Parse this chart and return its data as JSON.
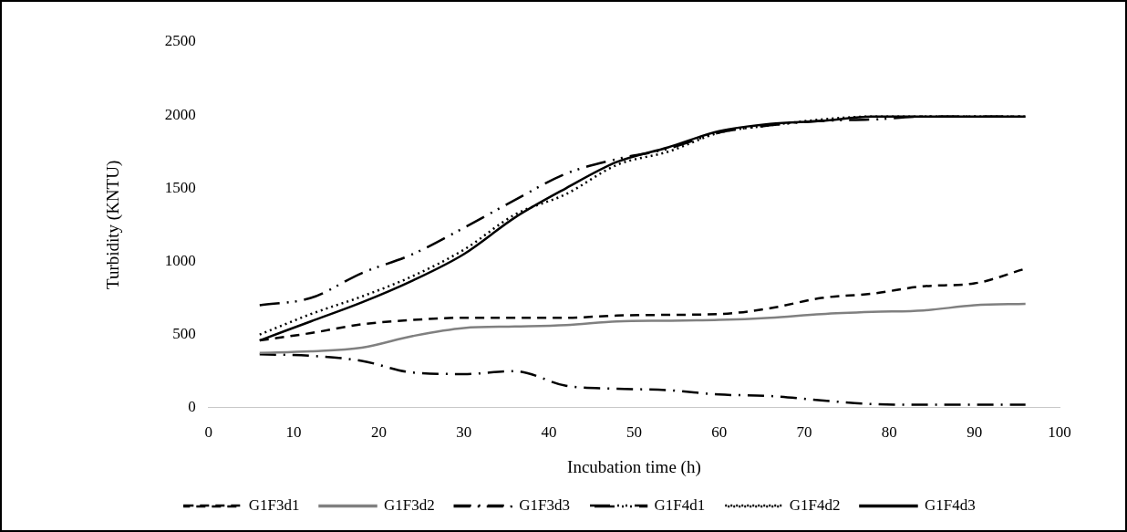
{
  "chart_data": {
    "type": "line",
    "xlabel": "Incubation time (h)",
    "ylabel": "Turbidity (KNTU)",
    "x": [
      6,
      12,
      18,
      24,
      30,
      36,
      42,
      48,
      54,
      60,
      66,
      72,
      78,
      84,
      90,
      96
    ],
    "xlim": [
      0,
      100
    ],
    "xticks": [
      0,
      10,
      20,
      30,
      40,
      50,
      60,
      70,
      80,
      90,
      100
    ],
    "ylim": [
      0,
      2500
    ],
    "yticks": [
      0,
      500,
      1000,
      1500,
      2000,
      2500
    ],
    "grid": false,
    "legend": "bottom",
    "marker": "none",
    "series": [
      {
        "name": "G1F3d1",
        "color": "#000000",
        "line_style": "dashed",
        "values": [
          460,
          510,
          570,
          600,
          615,
          615,
          615,
          630,
          635,
          640,
          680,
          750,
          780,
          830,
          850,
          950
        ]
      },
      {
        "name": "G1F3d2",
        "color": "#808080",
        "line_style": "solid",
        "values": [
          375,
          385,
          410,
          490,
          545,
          555,
          565,
          590,
          595,
          600,
          615,
          640,
          655,
          665,
          700,
          710
        ]
      },
      {
        "name": "G1F3d3",
        "color": "#000000",
        "line_style": "dashdot",
        "values": [
          365,
          355,
          320,
          240,
          230,
          250,
          150,
          130,
          120,
          90,
          80,
          50,
          25,
          20,
          20,
          20
        ]
      },
      {
        "name": "G1F4d1",
        "color": "#000000",
        "line_style": "dashdotdot",
        "values": [
          700,
          750,
          920,
          1050,
          1230,
          1420,
          1600,
          1700,
          1770,
          1880,
          1930,
          1960,
          1970,
          1990,
          1990,
          1990
        ]
      },
      {
        "name": "G1F4d2",
        "color": "#000000",
        "line_style": "dotted",
        "values": [
          500,
          640,
          760,
          900,
          1080,
          1320,
          1460,
          1660,
          1750,
          1880,
          1930,
          1970,
          1990,
          1990,
          1990,
          1990
        ]
      },
      {
        "name": "G1F4d3",
        "color": "#000000",
        "line_style": "solid",
        "values": [
          460,
          590,
          720,
          870,
          1050,
          1300,
          1500,
          1680,
          1780,
          1890,
          1940,
          1960,
          1990,
          1990,
          1990,
          1990
        ]
      }
    ]
  }
}
